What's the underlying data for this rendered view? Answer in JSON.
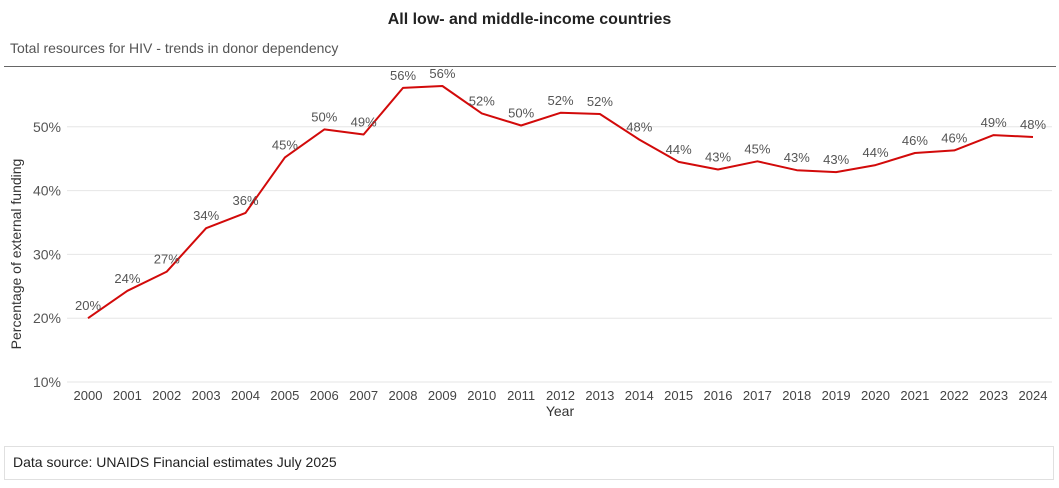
{
  "title": "All low- and middle-income countries",
  "subtitle": "Total resources for HIV - trends in donor dependency",
  "source": "Data source: UNAIDS Financial estimates July 2025",
  "colors": {
    "line": "#d20a0a",
    "grid": "#e6e6e6",
    "text": "#555555"
  },
  "chart_data": {
    "type": "line",
    "xlabel": "Year",
    "ylabel": "Percentage of external funding",
    "ylim": [
      10,
      57
    ],
    "yticks": [
      10,
      20,
      30,
      40,
      50
    ],
    "ytick_labels": [
      "10%",
      "20%",
      "30%",
      "40%",
      "50%"
    ],
    "grid": true,
    "x": [
      "2000",
      "2001",
      "2002",
      "2003",
      "2004",
      "2005",
      "2006",
      "2007",
      "2008",
      "2009",
      "2010",
      "2011",
      "2012",
      "2013",
      "2014",
      "2015",
      "2016",
      "2017",
      "2018",
      "2019",
      "2020",
      "2021",
      "2022",
      "2023",
      "2024"
    ],
    "values": [
      20,
      24.3,
      27.3,
      34.1,
      36.5,
      45.2,
      49.6,
      48.8,
      56.1,
      56.4,
      52.1,
      50.2,
      52.2,
      52.0,
      48.0,
      44.5,
      43.3,
      44.6,
      43.2,
      42.9,
      44.0,
      45.9,
      46.3,
      48.7,
      48.4
    ],
    "labels": [
      "20%",
      "24%",
      "27%",
      "34%",
      "36%",
      "45%",
      "50%",
      "49%",
      "56%",
      "56%",
      "52%",
      "50%",
      "52%",
      "52%",
      "48%",
      "44%",
      "43%",
      "45%",
      "43%",
      "43%",
      "44%",
      "46%",
      "46%",
      "49%",
      "48%"
    ]
  }
}
